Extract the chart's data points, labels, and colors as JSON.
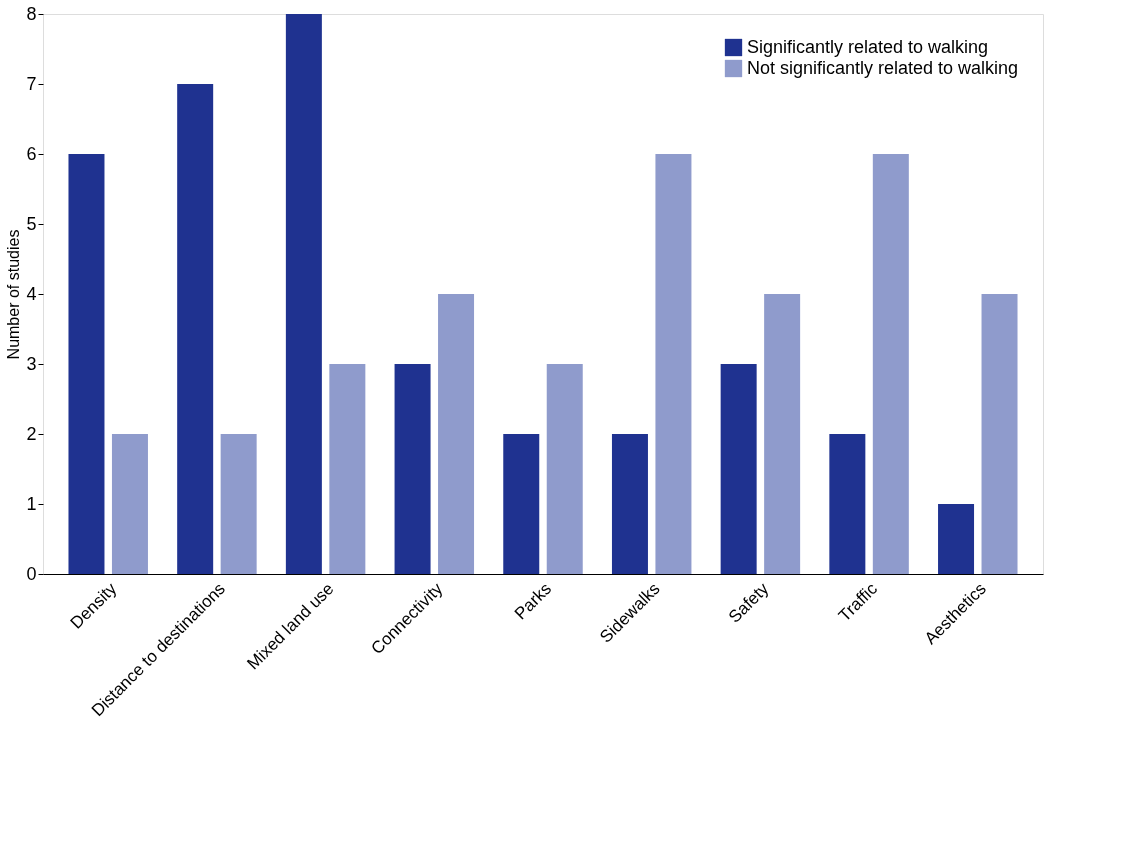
{
  "chart_data": {
    "type": "bar",
    "ylabel": "Number of studies",
    "categories": [
      "Density",
      "Distance to destinations",
      "Mixed land use",
      "Connectivity",
      "Parks",
      "Sidewalks",
      "Safety",
      "Traffic",
      "Aesthetics"
    ],
    "series": [
      {
        "name": "Significantly related to walking",
        "color": "#1f3290",
        "values": [
          6,
          7,
          8,
          3,
          2,
          2,
          3,
          2,
          1
        ]
      },
      {
        "name": "Not significantly related to walking",
        "color": "#8f9bcc",
        "values": [
          2,
          2,
          3,
          4,
          3,
          6,
          4,
          6,
          4
        ]
      }
    ],
    "ylim": [
      0,
      8
    ],
    "yticks": [
      0,
      1,
      2,
      3,
      4,
      5,
      6,
      7,
      8
    ],
    "grid": false,
    "legend": "top right"
  }
}
